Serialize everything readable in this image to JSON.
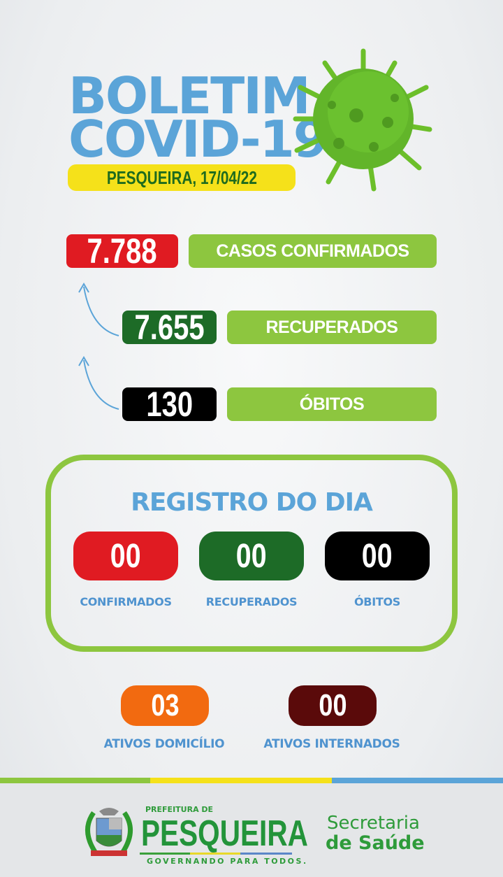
{
  "header": {
    "line1": "BOLETIM",
    "line2": "COVID-19",
    "location_date": "PESQUEIRA, 17/04/22",
    "illustration": "virus-icon"
  },
  "totals": [
    {
      "value": "7.788",
      "label": "CASOS CONFIRMADOS",
      "color": "#e01b22"
    },
    {
      "value": "7.655",
      "label": "RECUPERADOS",
      "color": "#1d6b27"
    },
    {
      "value": "130",
      "label": "ÓBITOS",
      "color": "#000000"
    }
  ],
  "registro": {
    "title": "REGISTRO DO DIA",
    "items": [
      {
        "value": "00",
        "label": "CONFIRMADOS",
        "color": "#e01b22"
      },
      {
        "value": "00",
        "label": "RECUPERADOS",
        "color": "#1d6b27"
      },
      {
        "value": "00",
        "label": "ÓBITOS",
        "color": "#000000"
      }
    ]
  },
  "ativos": [
    {
      "value": "03",
      "label": "ATIVOS DOMICÍLIO",
      "color": "#f26a10"
    },
    {
      "value": "00",
      "label": "ATIVOS INTERNADOS",
      "color": "#5a0a0a"
    }
  ],
  "footer": {
    "prefeitura_small": "PREFEITURA DE",
    "prefeitura_name": "PESQUEIRA",
    "slogan": "GOVERNANDO PARA TODOS.",
    "secretaria_line1": "Secretaria",
    "secretaria_line2": "de Saúde"
  },
  "colors": {
    "accent_blue": "#5ba4d8",
    "lime": "#8dc63f",
    "yellow": "#f5e11a"
  }
}
